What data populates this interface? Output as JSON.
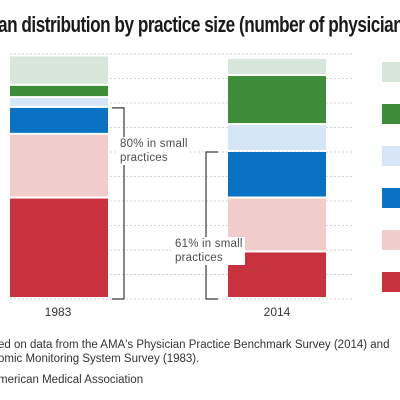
{
  "title": "an distribution by practice size (number of physicians)",
  "chart_data": {
    "type": "bar",
    "stacked": true,
    "normalized_to_percent": true,
    "title": "an distribution by practice size (number of physicians)",
    "categories": [
      "1983",
      "2014"
    ],
    "ylim": [
      0,
      100
    ],
    "grid": true,
    "legend_position": "right",
    "series": [
      {
        "color": "#c8323e",
        "values": [
          41,
          19
        ]
      },
      {
        "color": "#f0cccb",
        "values": [
          26,
          22
        ]
      },
      {
        "color": "#0a72c4",
        "values": [
          11,
          19
        ]
      },
      {
        "color": "#d6e6f6",
        "values": [
          4,
          11
        ]
      },
      {
        "color": "#3d8c37",
        "values": [
          5,
          20
        ]
      },
      {
        "color": "#d9e6dc",
        "values": [
          12,
          7
        ]
      }
    ],
    "annotations": [
      {
        "text_line1": "80% in small",
        "text_line2": "practices",
        "category": "1983"
      },
      {
        "text_line1": "61% in small",
        "text_line2": "practices",
        "category": "2014"
      }
    ]
  },
  "source_lines": [
    "ed on data from the AMA's Physician Practice Benchmark Survey (2014) and",
    "omic Monitoring System Survey (1983).",
    "merican Medical Association"
  ]
}
